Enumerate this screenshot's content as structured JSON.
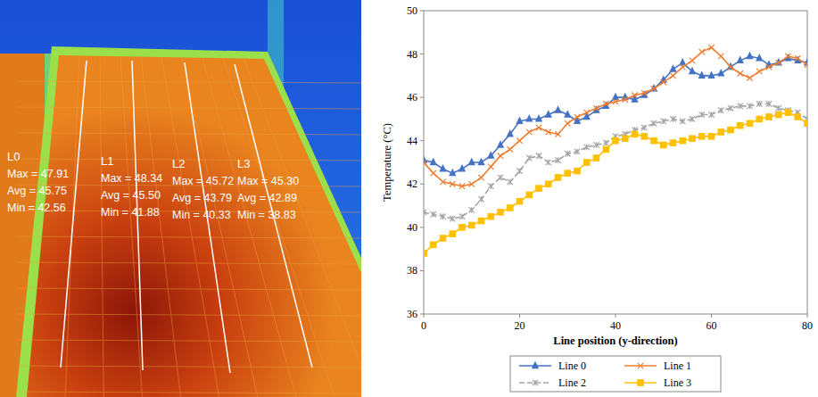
{
  "thermal_image": {
    "lines": [
      {
        "name": "L0",
        "stats": [
          "Max = 47.91",
          "Avg = 45.75",
          "Min = 42.56"
        ]
      },
      {
        "name": "L1",
        "stats": [
          "Max = 48.34",
          "Avg = 45.50",
          "Min = 41.88"
        ]
      },
      {
        "name": "L2",
        "stats": [
          "Max = 45.72",
          "Avg = 43.79",
          "Min = 40.33"
        ]
      },
      {
        "name": "L3",
        "stats": [
          "Max = 45.30",
          "Avg = 42.89",
          "Min = 38.83"
        ]
      }
    ]
  },
  "chart_data": {
    "type": "line",
    "xlabel": "Line position (y-direction)",
    "ylabel": "Temperature (°C)",
    "xlim": [
      0,
      80
    ],
    "xticks": [
      0,
      20,
      40,
      60,
      80
    ],
    "ylim": [
      36,
      50
    ],
    "yticks": [
      36,
      38,
      40,
      42,
      44,
      46,
      48,
      50
    ],
    "legend": "bottom",
    "grid": false,
    "x": [
      0,
      2,
      4,
      6,
      8,
      10,
      12,
      14,
      16,
      18,
      20,
      22,
      24,
      26,
      28,
      30,
      32,
      34,
      36,
      38,
      40,
      42,
      44,
      46,
      48,
      50,
      52,
      54,
      56,
      58,
      60,
      62,
      64,
      66,
      68,
      70,
      72,
      74,
      76,
      78,
      80
    ],
    "series": [
      {
        "name": "Line 0",
        "color": "#4472c4",
        "marker": "triangle",
        "line_style": "solid",
        "values": [
          43.1,
          43.0,
          42.7,
          42.5,
          42.7,
          43.0,
          43.0,
          43.3,
          43.8,
          44.3,
          44.9,
          45.0,
          45.0,
          45.2,
          45.4,
          45.2,
          44.9,
          45.1,
          45.4,
          45.6,
          46.0,
          46.0,
          45.9,
          46.1,
          46.4,
          46.8,
          47.3,
          47.6,
          47.2,
          47.0,
          47.0,
          47.1,
          47.4,
          47.7,
          47.9,
          47.8,
          47.5,
          47.6,
          47.8,
          47.7,
          47.6
        ]
      },
      {
        "name": "Line 1",
        "color": "#ed7d31",
        "marker": "x",
        "line_style": "solid",
        "values": [
          43.0,
          42.5,
          42.1,
          42.0,
          41.9,
          42.0,
          42.3,
          42.8,
          43.3,
          43.6,
          44.0,
          44.4,
          44.6,
          44.4,
          44.3,
          44.8,
          45.1,
          45.3,
          45.5,
          45.7,
          45.8,
          45.9,
          46.1,
          46.2,
          46.4,
          46.7,
          47.0,
          47.4,
          47.7,
          48.1,
          48.3,
          47.9,
          47.4,
          47.1,
          46.9,
          47.2,
          47.4,
          47.6,
          47.9,
          47.8,
          47.5
        ]
      },
      {
        "name": "Line 2",
        "color": "#a5a5a5",
        "marker": "star",
        "line_style": "dashed",
        "values": [
          40.7,
          40.6,
          40.5,
          40.4,
          40.5,
          40.8,
          41.3,
          41.9,
          42.3,
          42.1,
          42.6,
          43.2,
          43.3,
          43.0,
          43.1,
          43.4,
          43.5,
          43.7,
          43.8,
          43.9,
          44.2,
          44.3,
          44.5,
          44.6,
          44.8,
          44.9,
          45.0,
          44.9,
          45.0,
          45.2,
          45.2,
          45.4,
          45.5,
          45.6,
          45.6,
          45.7,
          45.7,
          45.5,
          45.4,
          45.3,
          45.0
        ]
      },
      {
        "name": "Line 3",
        "color": "#ffc000",
        "marker": "square",
        "line_style": "solid",
        "values": [
          38.8,
          39.2,
          39.5,
          39.7,
          40.0,
          40.1,
          40.3,
          40.5,
          40.7,
          40.9,
          41.2,
          41.5,
          41.8,
          42.0,
          42.3,
          42.5,
          42.6,
          43.0,
          43.2,
          43.6,
          44.0,
          44.1,
          44.3,
          44.2,
          44.0,
          43.8,
          43.9,
          44.0,
          44.1,
          44.2,
          44.2,
          44.4,
          44.5,
          44.7,
          44.8,
          45.0,
          45.1,
          45.2,
          45.3,
          45.1,
          44.8
        ]
      }
    ]
  }
}
